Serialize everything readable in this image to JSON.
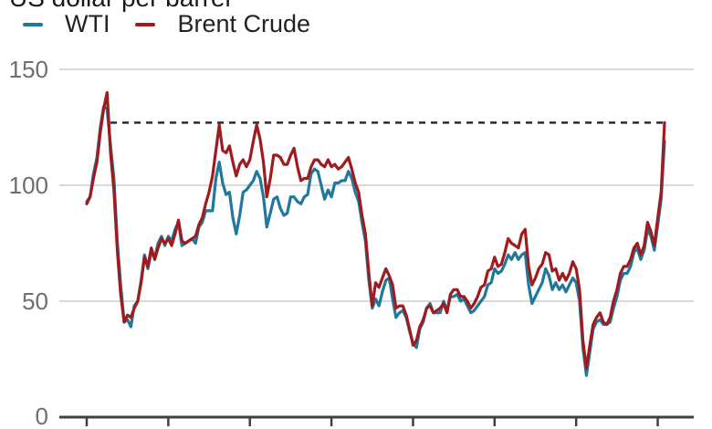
{
  "title": "US dollar per barrel",
  "legend": {
    "items": [
      {
        "label": "WTI",
        "color": "#21789d"
      },
      {
        "label": "Brent Crude",
        "color": "#9e1b1e"
      }
    ]
  },
  "y_axis": {
    "tick_labels": [
      "150",
      "100",
      "50",
      "0"
    ],
    "tick_values": [
      150,
      100,
      50,
      0
    ]
  },
  "chart_data": {
    "type": "line",
    "title": "US dollar per barrel",
    "ylabel": "US dollar per barrel",
    "xlabel": "",
    "ylim": [
      0,
      150
    ],
    "y_gridlines": [
      150,
      100,
      50
    ],
    "x_unit": "month",
    "x_start": "2008-01",
    "x_end": "2022-03",
    "x_tick_month_indices": [
      0,
      24,
      48,
      72,
      96,
      120,
      144,
      168
    ],
    "annotation_line": {
      "value": 127,
      "style": "dashed",
      "from_month_index": 7,
      "to_month_index": 170
    },
    "legend_position": "top-left",
    "grid": "horizontal-only",
    "series": [
      {
        "name": "WTI",
        "color": "#21789d",
        "values": [
          93,
          95,
          105,
          112,
          125,
          134,
          133,
          117,
          103,
          76,
          57,
          41,
          42,
          39,
          48,
          50,
          59,
          70,
          64,
          71,
          69,
          75,
          78,
          74,
          78,
          76,
          81,
          84,
          74,
          75,
          76,
          77,
          75,
          82,
          84,
          89,
          89,
          89,
          103,
          110,
          101,
          96,
          97,
          86,
          79,
          87,
          97,
          98,
          100,
          102,
          106,
          103,
          95,
          82,
          88,
          94,
          95,
          90,
          87,
          88,
          95,
          95,
          93,
          92,
          95,
          96,
          105,
          107,
          106,
          100,
          94,
          98,
          95,
          101,
          101,
          102,
          102,
          106,
          103,
          97,
          93,
          84,
          76,
          59,
          47,
          51,
          48,
          54,
          59,
          60,
          51,
          43,
          45,
          46,
          43,
          37,
          32,
          30,
          38,
          41,
          47,
          49,
          45,
          45,
          45,
          50,
          46,
          52,
          52,
          53,
          50,
          51,
          48,
          45,
          46,
          48,
          50,
          52,
          57,
          58,
          64,
          62,
          63,
          66,
          70,
          68,
          71,
          68,
          70,
          71,
          57,
          49,
          52,
          55,
          58,
          64,
          61,
          55,
          58,
          55,
          57,
          54,
          57,
          60,
          58,
          50,
          30,
          18,
          28,
          38,
          41,
          42,
          40,
          40,
          41,
          47,
          52,
          59,
          62,
          62,
          65,
          71,
          73,
          68,
          72,
          81,
          78,
          72,
          83,
          94,
          119
        ]
      },
      {
        "name": "Brent Crude",
        "color": "#9e1b1e",
        "values": [
          92,
          95,
          103,
          110,
          123,
          133,
          140,
          114,
          98,
          72,
          53,
          41,
          44,
          43,
          47,
          50,
          58,
          69,
          65,
          73,
          68,
          73,
          77,
          75,
          77,
          74,
          79,
          85,
          76,
          75,
          76,
          77,
          78,
          83,
          86,
          92,
          97,
          104,
          115,
          126,
          115,
          114,
          117,
          110,
          104,
          109,
          111,
          108,
          111,
          119,
          126,
          120,
          110,
          95,
          103,
          113,
          113,
          112,
          109,
          109,
          113,
          116,
          108,
          102,
          103,
          103,
          108,
          111,
          111,
          109,
          108,
          111,
          108,
          109,
          107,
          108,
          110,
          112,
          107,
          101,
          97,
          87,
          79,
          62,
          48,
          58,
          56,
          60,
          64,
          61,
          57,
          47,
          48,
          48,
          44,
          38,
          31,
          33,
          39,
          42,
          47,
          48,
          45,
          46,
          47,
          49,
          45,
          53,
          55,
          55,
          52,
          52,
          50,
          47,
          49,
          52,
          56,
          57,
          63,
          64,
          69,
          65,
          66,
          71,
          77,
          75,
          74,
          73,
          79,
          81,
          65,
          57,
          60,
          64,
          66,
          71,
          70,
          63,
          64,
          59,
          62,
          59,
          62,
          67,
          64,
          55,
          33,
          21,
          31,
          40,
          43,
          45,
          41,
          40,
          43,
          50,
          55,
          62,
          65,
          65,
          68,
          73,
          75,
          70,
          74,
          84,
          80,
          74,
          86,
          97,
          127
        ]
      }
    ]
  }
}
